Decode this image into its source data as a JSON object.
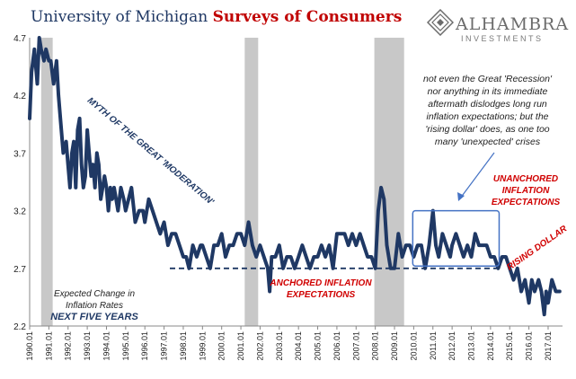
{
  "title": {
    "part1": "University of Michigan",
    "part2": "Surveys of Consumers"
  },
  "logo": {
    "name": "ALHAMBRA",
    "sub": "INVESTMENTS",
    "icon": "alhambra-diamond-logo"
  },
  "colors": {
    "series": "#1f3864",
    "recession": "#c8c8c8",
    "red_note": "#d00000",
    "navy_note": "#1f3864"
  },
  "annotations": {
    "myth": "MYTH OF THE GREAT 'MODERATION'",
    "recession_note": [
      "not even the Great 'Recession'",
      "nor anything in its immediate",
      "aftermath dislodges long run",
      "inflation expectations; but the",
      "'rising dollar' does, as one too",
      "many 'unexpected' crises"
    ],
    "unanchored": [
      "UNANCHORED",
      "INFLATION",
      "EXPECTATIONS"
    ],
    "anchored": [
      "ANCHORED INFLATION",
      "EXPECTATIONS"
    ],
    "rising_dollar": "RISING DOLLAR",
    "legend_lines": [
      "Expected Change in",
      "Inflation Rates"
    ],
    "legend_bold": "NEXT FIVE YEARS"
  },
  "chart_data": {
    "type": "line",
    "title": "University of Michigan Surveys of Consumers",
    "series_name": "Expected Change in Inflation Rates NEXT FIVE YEARS",
    "ylim": [
      2.2,
      4.7
    ],
    "yticks": [
      "2.2",
      "2.7",
      "3.2",
      "3.7",
      "4.2",
      "4.7"
    ],
    "xlim": [
      1990.0,
      2017.75
    ],
    "xticks": [
      "1990.01",
      "1991.01",
      "1992.01",
      "1993.01",
      "1994.01",
      "1995.01",
      "1996.01",
      "1997.01",
      "1998.01",
      "1999.01",
      "2000.01",
      "2001.01",
      "2002.01",
      "2003.01",
      "2004.01",
      "2005.01",
      "2006.01",
      "2007.01",
      "2008.01",
      "2009.01",
      "2010.01",
      "2011.01",
      "2012.01",
      "2013.01",
      "2014.01",
      "2015.01",
      "2016.01",
      "2017.01"
    ],
    "recessions": [
      [
        1990.6,
        1991.2
      ],
      [
        2001.2,
        2001.9
      ],
      [
        2007.95,
        2009.5
      ]
    ],
    "anchored_level": 2.7,
    "anchored_range": [
      1997.3,
      2014.5
    ],
    "x": [
      1990.0,
      1990.1,
      1990.25,
      1990.4,
      1990.5,
      1990.6,
      1990.75,
      1990.85,
      1991.0,
      1991.1,
      1991.25,
      1991.4,
      1991.5,
      1991.6,
      1991.75,
      1991.9,
      1992.0,
      1992.1,
      1992.2,
      1992.3,
      1992.4,
      1992.5,
      1992.6,
      1992.7,
      1992.8,
      1992.9,
      1993.0,
      1993.1,
      1993.2,
      1993.3,
      1993.4,
      1993.5,
      1993.6,
      1993.7,
      1993.8,
      1993.9,
      1994.0,
      1994.1,
      1994.2,
      1994.3,
      1994.4,
      1994.5,
      1994.6,
      1994.75,
      1994.9,
      1995.0,
      1995.15,
      1995.3,
      1995.5,
      1995.7,
      1995.9,
      1996.0,
      1996.2,
      1996.4,
      1996.6,
      1996.8,
      1997.0,
      1997.2,
      1997.4,
      1997.6,
      1997.8,
      1998.0,
      1998.15,
      1998.3,
      1998.5,
      1998.7,
      1998.9,
      1999.0,
      1999.2,
      1999.4,
      1999.6,
      1999.8,
      2000.0,
      2000.2,
      2000.4,
      2000.6,
      2000.8,
      2001.0,
      2001.2,
      2001.4,
      2001.6,
      2001.8,
      2002.0,
      2002.2,
      2002.4,
      2002.5,
      2002.6,
      2002.8,
      2003.0,
      2003.2,
      2003.4,
      2003.6,
      2003.8,
      2004.0,
      2004.2,
      2004.4,
      2004.6,
      2004.8,
      2005.0,
      2005.2,
      2005.4,
      2005.6,
      2005.8,
      2006.0,
      2006.2,
      2006.4,
      2006.6,
      2006.8,
      2007.0,
      2007.2,
      2007.4,
      2007.6,
      2007.8,
      2008.0,
      2008.15,
      2008.3,
      2008.45,
      2008.6,
      2008.8,
      2009.0,
      2009.2,
      2009.4,
      2009.6,
      2009.8,
      2010.0,
      2010.2,
      2010.4,
      2010.6,
      2010.8,
      2011.0,
      2011.15,
      2011.3,
      2011.5,
      2011.7,
      2011.9,
      2012.0,
      2012.2,
      2012.4,
      2012.6,
      2012.8,
      2013.0,
      2013.2,
      2013.4,
      2013.6,
      2013.8,
      2014.0,
      2014.2,
      2014.4,
      2014.6,
      2014.8,
      2015.0,
      2015.2,
      2015.4,
      2015.6,
      2015.8,
      2016.0,
      2016.15,
      2016.3,
      2016.5,
      2016.65,
      2016.8,
      2016.9,
      2017.0,
      2017.2,
      2017.4,
      2017.6
    ],
    "y": [
      4.0,
      4.4,
      4.6,
      4.3,
      4.7,
      4.6,
      4.5,
      4.6,
      4.5,
      4.5,
      4.3,
      4.5,
      4.2,
      4.0,
      3.7,
      3.8,
      3.6,
      3.4,
      3.7,
      3.8,
      3.4,
      3.9,
      4.0,
      3.6,
      3.4,
      3.5,
      3.9,
      3.7,
      3.5,
      3.6,
      3.4,
      3.7,
      3.6,
      3.3,
      3.4,
      3.5,
      3.4,
      3.2,
      3.4,
      3.3,
      3.4,
      3.3,
      3.2,
      3.4,
      3.3,
      3.2,
      3.3,
      3.4,
      3.1,
      3.2,
      3.2,
      3.1,
      3.3,
      3.2,
      3.1,
      3.0,
      3.1,
      2.9,
      3.0,
      3.0,
      2.9,
      2.8,
      2.8,
      2.7,
      2.9,
      2.8,
      2.9,
      2.9,
      2.8,
      2.7,
      2.9,
      2.9,
      3.0,
      2.8,
      2.9,
      2.9,
      3.0,
      3.0,
      2.9,
      3.1,
      2.9,
      2.8,
      2.9,
      2.8,
      2.7,
      2.5,
      2.8,
      2.8,
      2.9,
      2.7,
      2.8,
      2.8,
      2.7,
      2.8,
      2.9,
      2.8,
      2.7,
      2.8,
      2.8,
      2.9,
      2.8,
      2.9,
      2.7,
      3.0,
      3.0,
      3.0,
      2.9,
      3.0,
      2.9,
      3.0,
      2.9,
      2.8,
      2.8,
      2.7,
      3.2,
      3.4,
      3.3,
      2.9,
      2.7,
      2.7,
      3.0,
      2.8,
      2.9,
      2.9,
      2.8,
      2.9,
      2.9,
      2.7,
      2.9,
      3.2,
      2.9,
      2.8,
      3.0,
      2.9,
      2.8,
      2.9,
      3.0,
      2.9,
      2.8,
      2.9,
      2.8,
      3.0,
      2.9,
      2.9,
      2.9,
      2.8,
      2.8,
      2.7,
      2.8,
      2.8,
      2.7,
      2.6,
      2.7,
      2.5,
      2.6,
      2.4,
      2.6,
      2.5,
      2.6,
      2.5,
      2.3,
      2.5,
      2.4,
      2.6,
      2.5,
      2.5
    ]
  }
}
